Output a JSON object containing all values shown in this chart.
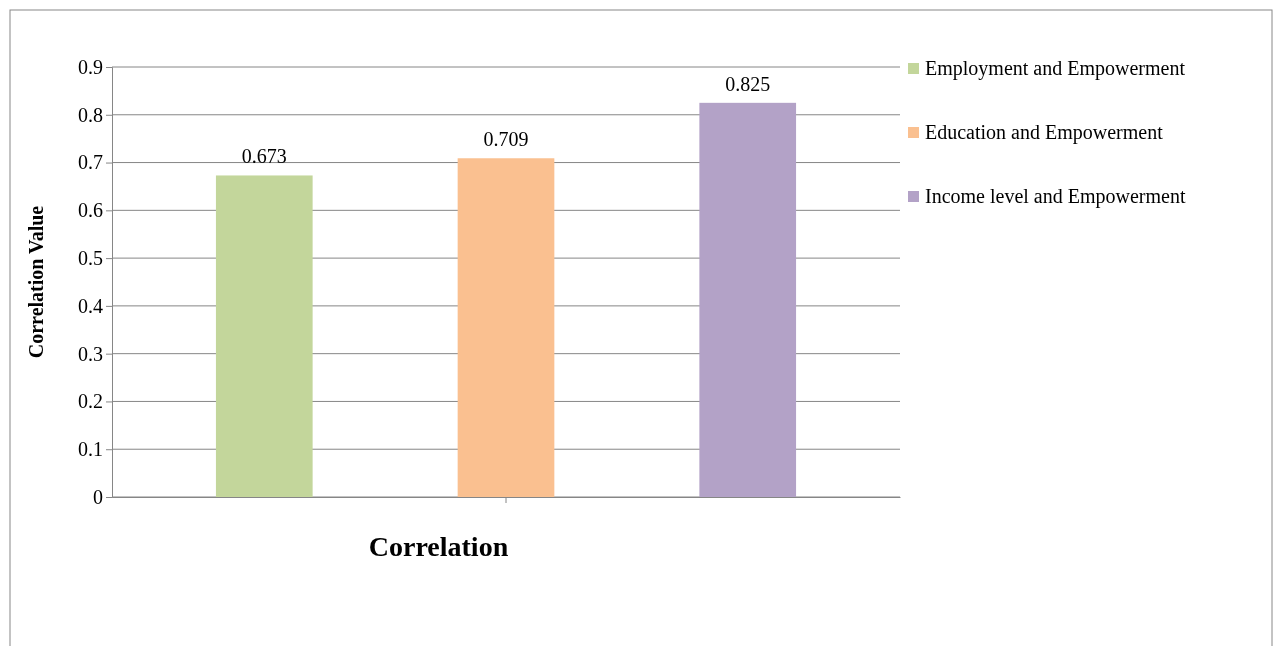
{
  "chart_data": {
    "type": "bar",
    "xlabel": "Correlation",
    "ylabel": "Correlation Value",
    "categories": [
      null
    ],
    "series": [
      {
        "name": "Employment and Empowerment",
        "color": "#c3d69b",
        "values": [
          0.673
        ]
      },
      {
        "name": "Education and Empowerment",
        "color": "#fac090",
        "values": [
          0.709
        ]
      },
      {
        "name": "Income level and Empowerment",
        "color": "#b3a2c7",
        "values": [
          0.825
        ]
      }
    ],
    "ylim": [
      0,
      0.9
    ],
    "yticks": [
      0,
      0.1,
      0.2,
      0.3,
      0.4,
      0.5,
      0.6,
      0.7,
      0.8,
      0.9
    ],
    "grid": "y",
    "legend": "right",
    "data_labels": true
  }
}
